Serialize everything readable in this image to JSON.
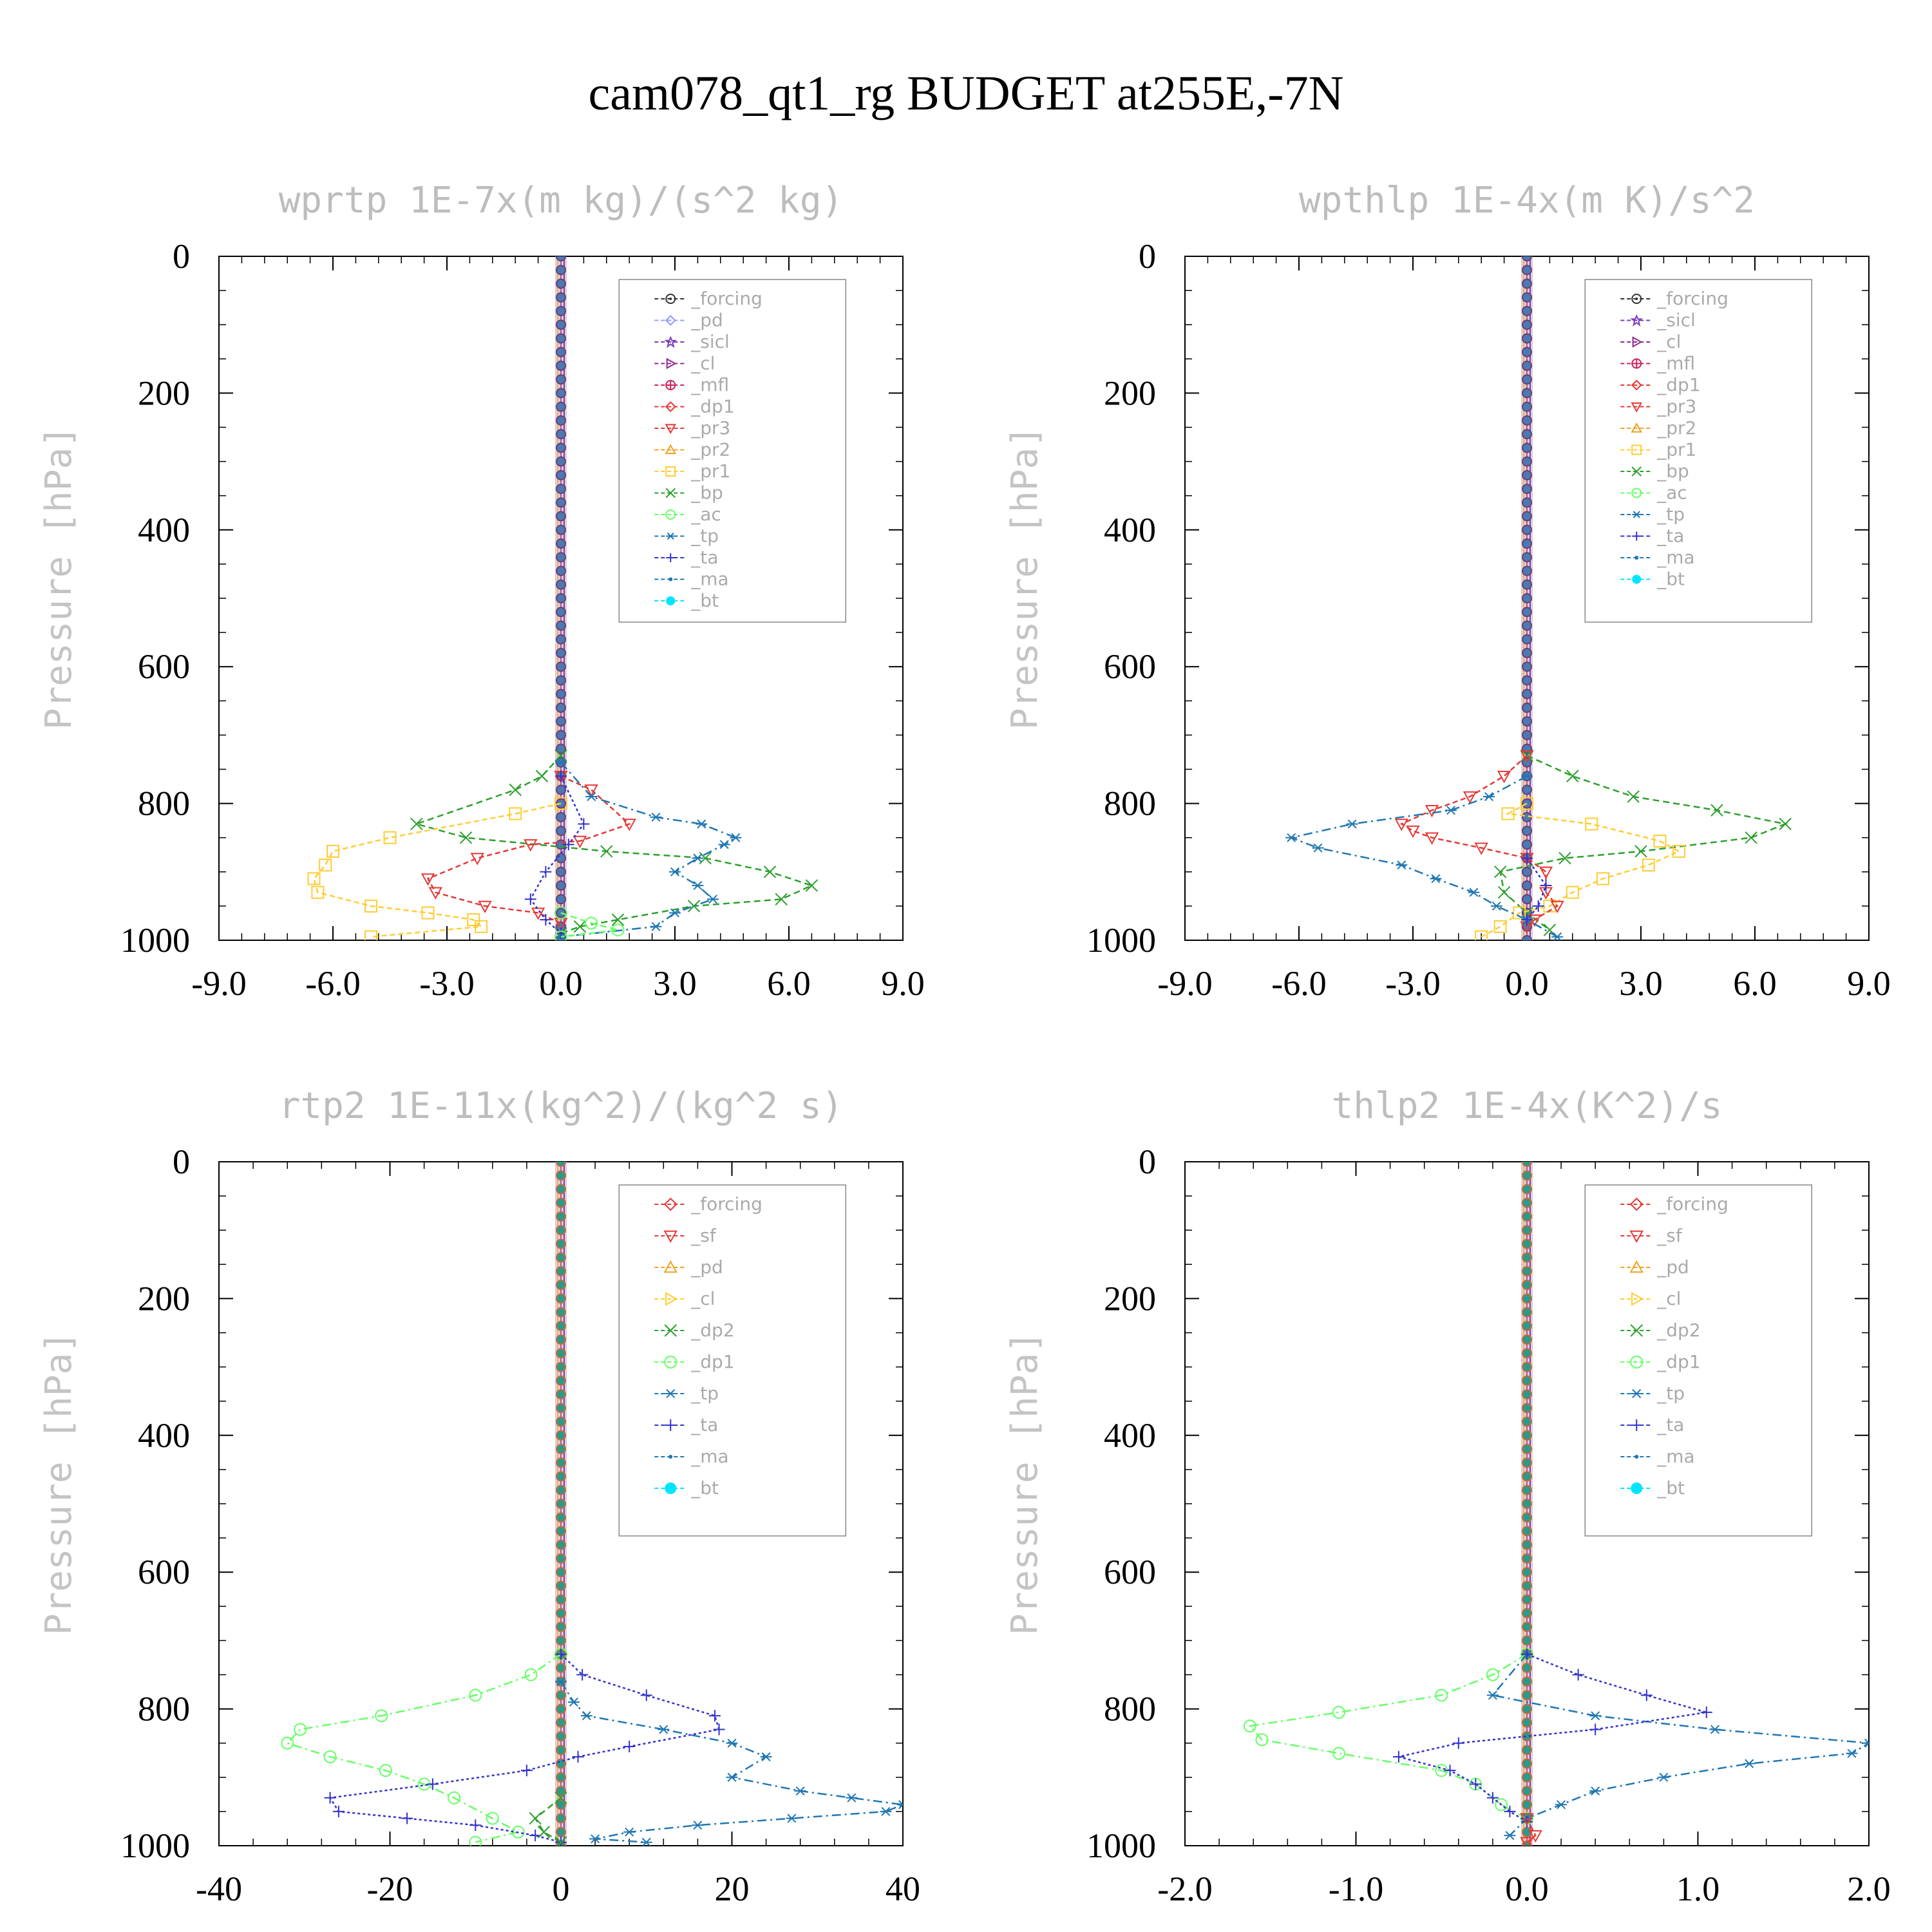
{
  "figure_title": "cam078_qt1_rg  BUDGET at255E,-7N",
  "chart_data": [
    {
      "type": "line",
      "title": "wprtp  1E-7x(m kg)/(s^2 kg)",
      "ylabel": "Pressure [hPa]",
      "xlim": [
        -9,
        9
      ],
      "ylim": [
        0,
        1000
      ],
      "y_inverted": true,
      "xticks": [
        "-9.0",
        "-6.0",
        "-3.0",
        "0.0",
        "3.0",
        "6.0",
        "9.0"
      ],
      "yticks": [
        "0",
        "200",
        "400",
        "600",
        "800",
        "1000"
      ],
      "legend": [
        "_forcing",
        "_pd",
        "_sicl",
        "_cl",
        "_mfl",
        "_dp1",
        "_pr3",
        "_pr2",
        "_pr1",
        "_bp",
        "_ac",
        "_tp",
        "_ta",
        "_ma",
        "_bt"
      ],
      "series": [
        {
          "name": "_bp",
          "color": "#2ca02c",
          "marker": "x",
          "dash": "10,6",
          "points": [
            [
              0,
              730
            ],
            [
              -0.5,
              760
            ],
            [
              -1.2,
              780
            ],
            [
              -3.8,
              830
            ],
            [
              -2.5,
              850
            ],
            [
              1.2,
              870
            ],
            [
              3.8,
              880
            ],
            [
              5.5,
              900
            ],
            [
              6.6,
              920
            ],
            [
              5.8,
              940
            ],
            [
              3.5,
              950
            ],
            [
              1.5,
              970
            ],
            [
              0.5,
              980
            ],
            [
              0,
              990
            ]
          ]
        },
        {
          "name": "_pr1",
          "color": "#ffcc33",
          "marker": "square",
          "dash": "8,5",
          "points": [
            [
              0,
              800
            ],
            [
              -1.2,
              815
            ],
            [
              -4.5,
              850
            ],
            [
              -6,
              870
            ],
            [
              -6.2,
              890
            ],
            [
              -6.5,
              910
            ],
            [
              -6.4,
              930
            ],
            [
              -5,
              950
            ],
            [
              -3.5,
              960
            ],
            [
              -2.3,
              970
            ],
            [
              -2.1,
              980
            ],
            [
              -5,
              995
            ]
          ]
        },
        {
          "name": "_pr3",
          "color": "#e53935",
          "marker": "triangle-down",
          "dash": "8,5",
          "points": [
            [
              0,
              760
            ],
            [
              0.8,
              780
            ],
            [
              1.8,
              830
            ],
            [
              0.5,
              855
            ],
            [
              -0.8,
              860
            ],
            [
              -2.2,
              880
            ],
            [
              -3.5,
              910
            ],
            [
              -3.3,
              930
            ],
            [
              -2,
              950
            ],
            [
              -0.6,
              960
            ],
            [
              0,
              975
            ]
          ]
        },
        {
          "name": "_tp",
          "color": "#1f77b4",
          "marker": "asterisk",
          "dash": "14,6,3,6",
          "points": [
            [
              0,
              740
            ],
            [
              0.8,
              790
            ],
            [
              2.5,
              820
            ],
            [
              3.7,
              830
            ],
            [
              4.6,
              850
            ],
            [
              4.3,
              860
            ],
            [
              3.6,
              880
            ],
            [
              3,
              900
            ],
            [
              3.6,
              920
            ],
            [
              4,
              940
            ],
            [
              3,
              960
            ],
            [
              2.5,
              980
            ],
            [
              0,
              995
            ]
          ]
        },
        {
          "name": "_ta",
          "color": "#3333cc",
          "marker": "plus",
          "dash": "4,4",
          "points": [
            [
              0,
              760
            ],
            [
              0.6,
              830
            ],
            [
              0.2,
              860
            ],
            [
              -0.4,
              900
            ],
            [
              -0.8,
              940
            ],
            [
              -0.4,
              970
            ],
            [
              0,
              990
            ]
          ]
        },
        {
          "name": "_ac",
          "color": "#66ff66",
          "marker": "circle",
          "dash": "10,6",
          "points": [
            [
              0,
              960
            ],
            [
              0.8,
              975
            ],
            [
              1.5,
              985
            ],
            [
              0,
              995
            ]
          ]
        }
      ]
    },
    {
      "type": "line",
      "title": "wpthlp  1E-4x(m K)/s^2",
      "ylabel": "Pressure [hPa]",
      "xlim": [
        -9,
        9
      ],
      "ylim": [
        0,
        1000
      ],
      "y_inverted": true,
      "xticks": [
        "-9.0",
        "-6.0",
        "-3.0",
        "0.0",
        "3.0",
        "6.0",
        "9.0"
      ],
      "yticks": [
        "0",
        "200",
        "400",
        "600",
        "800",
        "1000"
      ],
      "legend": [
        "_forcing",
        "_sicl",
        "_cl",
        "_mfl",
        "_dp1",
        "_pr3",
        "_pr2",
        "_pr1",
        "_bp",
        "_ac",
        "_tp",
        "_ta",
        "_ma",
        "_bt"
      ],
      "series": [
        {
          "name": "_bp",
          "color": "#2ca02c",
          "marker": "x",
          "dash": "10,6",
          "points": [
            [
              0,
              730
            ],
            [
              1.2,
              760
            ],
            [
              2.8,
              790
            ],
            [
              5,
              810
            ],
            [
              6.8,
              830
            ],
            [
              5.9,
              850
            ],
            [
              3,
              870
            ],
            [
              1,
              880
            ],
            [
              -0.7,
              900
            ],
            [
              -0.6,
              930
            ],
            [
              0,
              960
            ],
            [
              0.6,
              985
            ]
          ]
        },
        {
          "name": "_pr1",
          "color": "#ffcc33",
          "marker": "square",
          "dash": "8,5",
          "points": [
            [
              0,
              800
            ],
            [
              -0.5,
              815
            ],
            [
              1.7,
              830
            ],
            [
              3.5,
              855
            ],
            [
              4,
              870
            ],
            [
              3.2,
              890
            ],
            [
              2,
              910
            ],
            [
              1.2,
              930
            ],
            [
              0.6,
              950
            ],
            [
              -0.2,
              960
            ],
            [
              -0.7,
              980
            ],
            [
              -1.2,
              995
            ]
          ]
        },
        {
          "name": "_pr3",
          "color": "#e53935",
          "marker": "triangle-down",
          "dash": "8,5",
          "points": [
            [
              0,
              730
            ],
            [
              -0.6,
              760
            ],
            [
              -1.5,
              790
            ],
            [
              -2.5,
              810
            ],
            [
              -3.3,
              830
            ],
            [
              -3,
              840
            ],
            [
              -2.5,
              850
            ],
            [
              -1.2,
              865
            ],
            [
              0,
              880
            ],
            [
              0.5,
              900
            ],
            [
              0.5,
              930
            ],
            [
              0.8,
              950
            ],
            [
              0.2,
              970
            ],
            [
              0,
              980
            ]
          ]
        },
        {
          "name": "_tp",
          "color": "#1f77b4",
          "marker": "asterisk",
          "dash": "14,6,3,6",
          "points": [
            [
              0,
              760
            ],
            [
              -1,
              790
            ],
            [
              -2,
              810
            ],
            [
              -4.6,
              830
            ],
            [
              -6.2,
              850
            ],
            [
              -5.5,
              865
            ],
            [
              -3.3,
              890
            ],
            [
              -2.4,
              910
            ],
            [
              -1.4,
              930
            ],
            [
              -0.8,
              950
            ],
            [
              0,
              970
            ],
            [
              0.8,
              995
            ]
          ]
        },
        {
          "name": "_ta",
          "color": "#3333cc",
          "marker": "plus",
          "dash": "4,4",
          "points": [
            [
              0,
              880
            ],
            [
              0.5,
              920
            ],
            [
              0.3,
              950
            ],
            [
              0,
              970
            ]
          ]
        }
      ]
    },
    {
      "type": "line",
      "title": "rtp2  1E-11x(kg^2)/(kg^2 s)",
      "ylabel": "Pressure [hPa]",
      "xlim": [
        -40,
        40
      ],
      "ylim": [
        0,
        1000
      ],
      "y_inverted": true,
      "xticks": [
        "-40",
        "-20",
        "0",
        "20",
        "40"
      ],
      "yticks": [
        "0",
        "200",
        "400",
        "600",
        "800",
        "1000"
      ],
      "legend": [
        "_forcing",
        "_sf",
        "_pd",
        "_cl",
        "_dp2",
        "_dp1",
        "_tp",
        "_ta",
        "_ma",
        "_bt"
      ],
      "series": [
        {
          "name": "_dp1",
          "color": "#66ff66",
          "marker": "circle",
          "dash": "14,6,3,6",
          "points": [
            [
              0,
              720
            ],
            [
              -3.5,
              750
            ],
            [
              -10,
              780
            ],
            [
              -21,
              810
            ],
            [
              -30.5,
              830
            ],
            [
              -32,
              850
            ],
            [
              -27,
              870
            ],
            [
              -20.5,
              890
            ],
            [
              -16,
              910
            ],
            [
              -12.5,
              930
            ],
            [
              -8,
              960
            ],
            [
              -5,
              980
            ],
            [
              -10,
              995
            ]
          ]
        },
        {
          "name": "_tp",
          "color": "#1f77b4",
          "marker": "asterisk",
          "dash": "14,6,3,6",
          "points": [
            [
              0,
              760
            ],
            [
              1.5,
              790
            ],
            [
              3,
              810
            ],
            [
              12,
              830
            ],
            [
              20,
              850
            ],
            [
              24,
              870
            ],
            [
              20,
              900
            ],
            [
              28,
              920
            ],
            [
              34,
              930
            ],
            [
              40,
              940
            ],
            [
              38,
              950
            ],
            [
              27,
              960
            ],
            [
              16,
              970
            ],
            [
              8,
              980
            ],
            [
              4,
              990
            ],
            [
              10,
              995
            ]
          ]
        },
        {
          "name": "_ta",
          "color": "#3333cc",
          "marker": "plus",
          "dash": "4,4",
          "points": [
            [
              0,
              720
            ],
            [
              2.5,
              750
            ],
            [
              10,
              780
            ],
            [
              18,
              810
            ],
            [
              18.5,
              830
            ],
            [
              8,
              855
            ],
            [
              2,
              870
            ],
            [
              -4,
              890
            ],
            [
              -15,
              910
            ],
            [
              -27,
              930
            ],
            [
              -26,
              950
            ],
            [
              -18,
              960
            ],
            [
              -10,
              970
            ],
            [
              -3,
              985
            ],
            [
              0,
              995
            ]
          ]
        },
        {
          "name": "_dp2",
          "color": "#2ca02c",
          "marker": "x",
          "dash": "10,6",
          "points": [
            [
              0,
              930
            ],
            [
              -3,
              960
            ],
            [
              -2,
              980
            ],
            [
              0,
              995
            ]
          ]
        }
      ]
    },
    {
      "type": "line",
      "title": "thlp2  1E-4x(K^2)/s",
      "ylabel": "Pressure [hPa]",
      "xlim": [
        -2,
        2
      ],
      "ylim": [
        0,
        1000
      ],
      "y_inverted": true,
      "xticks": [
        "-2.0",
        "-1.0",
        "0.0",
        "1.0",
        "2.0"
      ],
      "yticks": [
        "0",
        "200",
        "400",
        "600",
        "800",
        "1000"
      ],
      "legend": [
        "_forcing",
        "_sf",
        "_pd",
        "_cl",
        "_dp2",
        "_dp1",
        "_tp",
        "_ta",
        "_ma",
        "_bt"
      ],
      "series": [
        {
          "name": "_dp1",
          "color": "#66ff66",
          "marker": "circle",
          "dash": "14,6,3,6",
          "points": [
            [
              0,
              720
            ],
            [
              -0.2,
              750
            ],
            [
              -0.5,
              780
            ],
            [
              -1.1,
              805
            ],
            [
              -1.62,
              825
            ],
            [
              -1.55,
              845
            ],
            [
              -1.1,
              865
            ],
            [
              -0.5,
              890
            ],
            [
              -0.3,
              910
            ],
            [
              -0.15,
              940
            ],
            [
              0,
              960
            ]
          ]
        },
        {
          "name": "_tp",
          "color": "#1f77b4",
          "marker": "asterisk",
          "dash": "14,6,3,6",
          "points": [
            [
              0,
              720
            ],
            [
              -0.2,
              780
            ],
            [
              0.4,
              810
            ],
            [
              1.1,
              830
            ],
            [
              2,
              850
            ],
            [
              1.9,
              865
            ],
            [
              1.3,
              880
            ],
            [
              0.8,
              900
            ],
            [
              0.4,
              920
            ],
            [
              0.2,
              940
            ],
            [
              0,
              960
            ],
            [
              -0.1,
              985
            ]
          ]
        },
        {
          "name": "_ta",
          "color": "#3333cc",
          "marker": "plus",
          "dash": "4,4",
          "points": [
            [
              0,
              720
            ],
            [
              0.3,
              750
            ],
            [
              0.7,
              780
            ],
            [
              1.05,
              805
            ],
            [
              0.4,
              830
            ],
            [
              -0.4,
              850
            ],
            [
              -0.75,
              870
            ],
            [
              -0.45,
              890
            ],
            [
              -0.3,
              910
            ],
            [
              -0.2,
              930
            ],
            [
              -0.1,
              950
            ],
            [
              0,
              965
            ]
          ]
        },
        {
          "name": "_sf",
          "color": "#e53935",
          "marker": "triangle-down",
          "dash": "8,5",
          "points": [
            [
              0,
              960
            ],
            [
              0.05,
              985
            ],
            [
              0,
              995
            ]
          ]
        }
      ]
    }
  ]
}
